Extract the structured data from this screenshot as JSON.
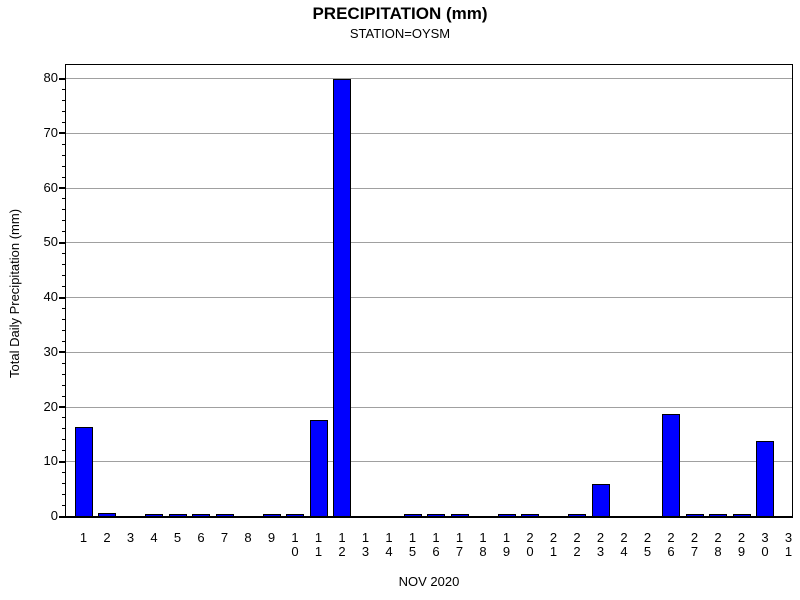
{
  "chart_data": {
    "type": "bar",
    "title": "PRECIPITATION (mm)",
    "subtitle": "STATION=OYSM",
    "xlabel": "NOV 2020",
    "ylabel": "Total Daily Precipitation (mm)",
    "categories": [
      1,
      2,
      3,
      4,
      5,
      6,
      7,
      8,
      9,
      10,
      11,
      12,
      13,
      14,
      15,
      16,
      17,
      18,
      19,
      20,
      21,
      22,
      23,
      24,
      25,
      26,
      27,
      28,
      29,
      30,
      31
    ],
    "values": [
      16.0,
      0.4,
      0,
      0.2,
      0.2,
      0.2,
      0.2,
      0,
      0.2,
      0.2,
      17.4,
      79.6,
      0,
      0,
      0.2,
      0.2,
      0.2,
      0,
      0.2,
      0.2,
      0,
      0.2,
      5.6,
      0,
      0,
      18.4,
      0.2,
      0.2,
      0.2,
      13.5,
      0
    ],
    "ylim": [
      0,
      80
    ],
    "ytick_step": 10,
    "yminor_tick_step": 2,
    "grid": true,
    "legend": "none",
    "bar_color": "#0000ff",
    "bar_border_color": "#000000",
    "grid_color": "#a0a0a0"
  }
}
